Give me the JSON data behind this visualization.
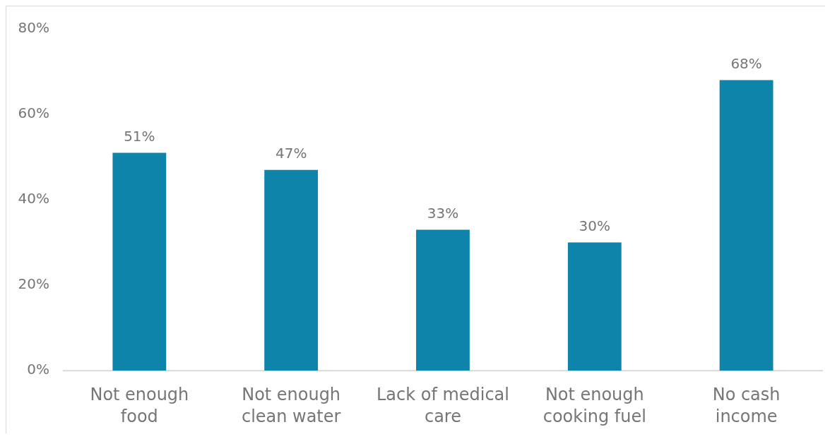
{
  "chart_data": {
    "type": "bar",
    "categories": [
      "Not enough food",
      "Not enough clean water",
      "Lack of medical care",
      "Not enough cooking fuel",
      "No cash income"
    ],
    "values": [
      51,
      47,
      33,
      30,
      68
    ],
    "color": "#0f84aa",
    "ylim": [
      0,
      80
    ],
    "yticks": [
      {
        "value": 0,
        "label": "0%"
      },
      {
        "value": 20,
        "label": "20%"
      },
      {
        "value": 40,
        "label": "40%"
      },
      {
        "value": 60,
        "label": "60%"
      },
      {
        "value": 80,
        "label": "80%"
      }
    ],
    "value_labels": [
      "51%",
      "47%",
      "33%",
      "30%",
      "68%"
    ],
    "grid": false
  }
}
